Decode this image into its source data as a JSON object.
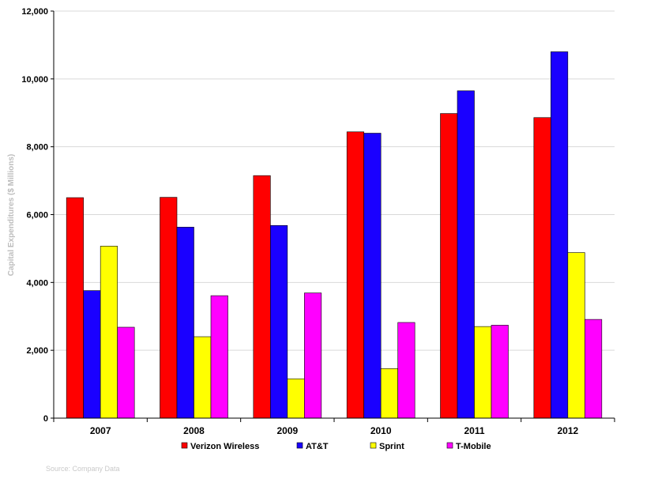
{
  "chart_data": {
    "type": "bar",
    "title": "",
    "xlabel": "",
    "ylabel": "Capital Expenditures ($ Millions)",
    "ylim": [
      0,
      12000
    ],
    "yticks": [
      "0",
      "2,000",
      "4,000",
      "6,000",
      "8,000",
      "10,000",
      "12,000"
    ],
    "grid": true,
    "legend_position": "bottom",
    "categories": [
      "2007",
      "2008",
      "2009",
      "2010",
      "2011",
      "2012"
    ],
    "series": [
      {
        "name": "Verizon Wireless",
        "color": "#ff0000",
        "values": [
          6500,
          6510,
          7150,
          8440,
          8980,
          8860
        ]
      },
      {
        "name": "AT&T",
        "color": "#1a00ff",
        "values": [
          3760,
          5630,
          5680,
          8400,
          9650,
          10800
        ]
      },
      {
        "name": "Sprint",
        "color": "#ffff00",
        "values": [
          5070,
          2400,
          1160,
          1460,
          2700,
          4880
        ]
      },
      {
        "name": "T-Mobile",
        "color": "#ff00ff",
        "values": [
          2680,
          3610,
          3690,
          2820,
          2740,
          2910
        ]
      }
    ],
    "source": "Source: Company Data"
  }
}
